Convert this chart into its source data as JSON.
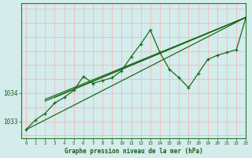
{
  "title": "Graphe pression niveau de la mer (hPa)",
  "bg_color": "#d4ecec",
  "grid_color_v": "#f5b8b8",
  "grid_color_h": "#f5b8b8",
  "line_color": "#1a6b1a",
  "xmin": -0.5,
  "xmax": 23,
  "ymin": 1032.4,
  "ymax": 1037.2,
  "yticks": [
    1033,
    1034
  ],
  "main_line": [
    1032.7,
    1033.05,
    1033.28,
    1033.65,
    1033.85,
    1034.1,
    1034.6,
    1034.35,
    1034.45,
    1034.55,
    1034.8,
    1035.3,
    1035.75,
    1036.25,
    1035.45,
    1034.85,
    1034.55,
    1034.2,
    1034.7,
    1035.2,
    1035.35,
    1035.45,
    1035.55,
    1036.7
  ],
  "trend1_x": [
    0,
    23
  ],
  "trend1_y": [
    1032.7,
    1036.7
  ],
  "trend2_x": [
    2,
    23
  ],
  "trend2_y": [
    1033.72,
    1036.7
  ],
  "trend3_x": [
    2,
    23
  ],
  "trend3_y": [
    1033.78,
    1036.7
  ],
  "trend4_x": [
    3,
    23
  ],
  "trend4_y": [
    1033.85,
    1036.7
  ]
}
